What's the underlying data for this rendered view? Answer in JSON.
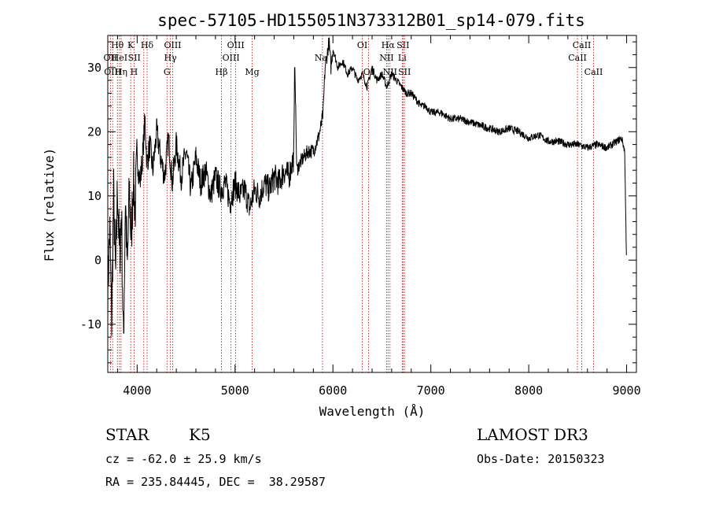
{
  "chart_data": {
    "type": "line",
    "title": "spec-57105-HD155051N373312B01_sp14-079.fits",
    "xlabel": "Wavelength (Å)",
    "ylabel": "Flux (relative)",
    "xlim": [
      3700,
      9100
    ],
    "ylim": [
      -17.5,
      35
    ],
    "x_ticks": [
      4000,
      5000,
      6000,
      7000,
      8000,
      9000
    ],
    "y_ticks": [
      -10,
      0,
      10,
      20,
      30
    ],
    "line_color": "#000000",
    "marker_color": "#c00000",
    "series": [
      {
        "name": "flux",
        "x": [
          3700,
          3720,
          3740,
          3760,
          3780,
          3800,
          3820,
          3840,
          3860,
          3880,
          3900,
          3920,
          3940,
          3960,
          3980,
          4000,
          4030,
          4060,
          4080,
          4100,
          4130,
          4160,
          4200,
          4240,
          4280,
          4320,
          4360,
          4400,
          4450,
          4500,
          4550,
          4600,
          4650,
          4700,
          4750,
          4800,
          4850,
          4900,
          4950,
          5000,
          5050,
          5100,
          5150,
          5200,
          5250,
          5300,
          5350,
          5400,
          5450,
          5500,
          5550,
          5580,
          5600,
          5610,
          5630,
          5660,
          5700,
          5750,
          5800,
          5850,
          5880,
          5900,
          5920,
          5940,
          5960,
          5980,
          6000,
          6050,
          6100,
          6150,
          6200,
          6250,
          6300,
          6350,
          6400,
          6450,
          6500,
          6550,
          6600,
          6650,
          6700,
          6750,
          6800,
          6850,
          6900,
          6950,
          7000,
          7100,
          7200,
          7300,
          7400,
          7500,
          7600,
          7700,
          7800,
          7900,
          8000,
          8100,
          8200,
          8300,
          8400,
          8500,
          8600,
          8700,
          8800,
          8900,
          8950,
          8980,
          9000
        ],
        "y": [
          -5,
          5,
          -10,
          10,
          -3,
          12,
          0,
          8,
          -14,
          10,
          -2,
          11,
          3,
          13,
          8,
          16,
          12,
          17,
          22,
          15,
          18,
          14,
          20,
          16,
          13,
          19,
          12,
          18,
          13,
          17,
          11,
          16,
          12,
          14,
          10,
          13,
          11,
          12,
          9,
          12,
          10,
          11,
          8,
          11,
          10,
          12,
          11,
          13,
          12,
          14,
          13,
          15,
          16,
          32,
          14,
          15,
          16,
          17,
          17,
          19,
          21,
          23,
          30,
          32,
          34,
          30,
          33,
          30,
          31,
          29,
          30,
          28,
          29,
          27,
          30,
          28,
          29,
          27,
          29,
          28,
          27,
          26,
          26,
          25,
          24,
          24,
          23,
          23,
          22,
          22,
          21.5,
          21,
          20.5,
          20,
          20.5,
          20,
          19,
          19.5,
          18.5,
          18.5,
          18,
          18,
          17.5,
          18,
          17.5,
          18.5,
          19,
          17,
          -1
        ]
      }
    ],
    "line_markers": [
      {
        "label": "Hθ",
        "x": 3798,
        "row": 0,
        "dx": 0
      },
      {
        "label": "OII",
        "x": 3727,
        "row": 1,
        "dx": 0
      },
      {
        "label": "HeI",
        "x": 3820,
        "row": 1,
        "dx": 0
      },
      {
        "label": "OIII",
        "x": 3750,
        "row": 2,
        "dx": 0
      },
      {
        "label": "Hη",
        "x": 3836,
        "row": 2,
        "dx": 0
      },
      {
        "label": "K",
        "x": 3934,
        "row": 0,
        "dx": 0
      },
      {
        "label": "H",
        "x": 3969,
        "row": 2,
        "dx": 0
      },
      {
        "label": "SII",
        "x": 4068,
        "row": 1,
        "dx": -12
      },
      {
        "label": "Hδ",
        "x": 4102,
        "row": 0,
        "dx": 0
      },
      {
        "label": "OIII",
        "x": 4363,
        "row": 0,
        "dx": 0
      },
      {
        "label": "Hγ",
        "x": 4340,
        "row": 1,
        "dx": 0
      },
      {
        "label": "G",
        "x": 4305,
        "row": 2,
        "dx": 0
      },
      {
        "label": "Hβ",
        "x": 4861,
        "row": 2,
        "dx": 0
      },
      {
        "label": "OIII",
        "x": 5007,
        "row": 0,
        "dx": 0
      },
      {
        "label": "OIII",
        "x": 4959,
        "row": 1,
        "dx": 0
      },
      {
        "label": "Mg",
        "x": 5175,
        "row": 2,
        "dx": 0
      },
      {
        "label": "Na",
        "x": 5893,
        "row": 1,
        "dx": -2
      },
      {
        "label": "OI",
        "x": 6300,
        "row": 0,
        "dx": 0
      },
      {
        "label": "OI",
        "x": 6363,
        "row": 2,
        "dx": 0
      },
      {
        "label": "Hα",
        "x": 6563,
        "row": 0,
        "dx": 0
      },
      {
        "label": "NII",
        "x": 6548,
        "row": 1,
        "dx": 0
      },
      {
        "label": "NII",
        "x": 6583,
        "row": 2,
        "dx": 0
      },
      {
        "label": "SII",
        "x": 6716,
        "row": 0,
        "dx": 0
      },
      {
        "label": "Li",
        "x": 6708,
        "row": 1,
        "dx": 0
      },
      {
        "label": "SII",
        "x": 6731,
        "row": 2,
        "dx": 0
      },
      {
        "label": "CaII",
        "x": 8542,
        "row": 0,
        "dx": 0
      },
      {
        "label": "CaII",
        "x": 8498,
        "row": 1,
        "dx": 0
      },
      {
        "label": "CaII",
        "x": 8662,
        "row": 2,
        "dx": 0
      }
    ]
  },
  "info": {
    "class_label": "STAR",
    "subclass": "K5",
    "survey": "LAMOST DR3",
    "cz": "cz = -62.0 ± 25.9 km/s",
    "obs_date": "Obs-Date: 20150323",
    "coords": "RA = 235.84445, DEC =  38.29587"
  }
}
